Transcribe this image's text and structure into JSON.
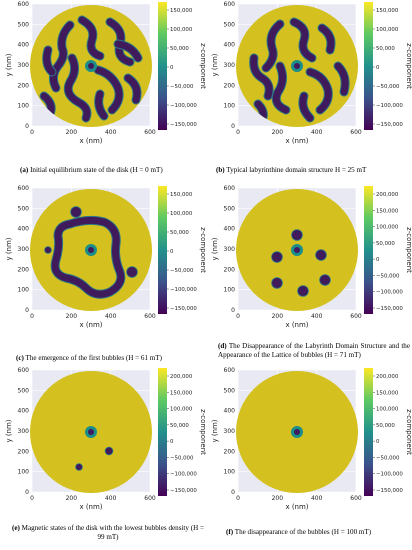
{
  "colors": {
    "background_panel": "#e8e9f2",
    "disk": "#d4c11f",
    "domain": "#3f1b5c",
    "wall": "#2d7a86",
    "core": "#1b8e8a",
    "colorbar": [
      "#440154",
      "#3b528b",
      "#21918c",
      "#5ec962",
      "#fde725"
    ]
  },
  "panels": [
    {
      "id": "a",
      "caption_letter": "(a)",
      "caption_text": "Initial equilibrium state of the disk (H = 0 mT)",
      "xlabel": "x (nm)",
      "ylabel": "y (nm)",
      "cbar_label": "z-component",
      "xticks": [
        "0",
        "200",
        "400",
        "600"
      ],
      "yticks": [
        "0",
        "100",
        "200",
        "300",
        "400",
        "500",
        "600"
      ],
      "cbar_ticks": [
        "150,000",
        "100,000",
        "50,000",
        "0",
        "−50,000",
        "−100,000",
        "−150,000"
      ],
      "state": "labyrinth-dense"
    },
    {
      "id": "b",
      "caption_letter": "(b)",
      "caption_text": "Typical labyrinthine domain structure  H = 25 mT",
      "xlabel": "x (nm)",
      "ylabel": "y (nm)",
      "cbar_label": "z-component",
      "xticks": [
        "0",
        "200",
        "400",
        "600"
      ],
      "yticks": [
        "0",
        "100",
        "200",
        "300",
        "400",
        "500",
        "600"
      ],
      "cbar_ticks": [
        "150,000",
        "100,000",
        "50,000",
        "0",
        "−50,000",
        "−100,000",
        "−150,000"
      ],
      "state": "labyrinth"
    },
    {
      "id": "c",
      "caption_letter": "(c)",
      "caption_text": "The emergence of the first bubbles (H = 61 mT)",
      "xlabel": "x (nm)",
      "ylabel": "y (nm)",
      "cbar_label": "z-component",
      "xticks": [
        "0",
        "200",
        "400",
        "600"
      ],
      "yticks": [
        "0",
        "100",
        "200",
        "300",
        "400",
        "500",
        "600"
      ],
      "cbar_ticks": [
        "150,000",
        "100,000",
        "50,000",
        "0",
        "−50,000",
        "−100,000",
        "−150,000"
      ],
      "state": "loop-bubbles"
    },
    {
      "id": "d",
      "caption_letter": "(d)",
      "caption_text": "The Disappearance of the Labyrinth Domain Structure and the Appearance of the Lattice of bubbles (H = 71 mT)",
      "xlabel": "x (nm)",
      "ylabel": "y (nm)",
      "cbar_label": "z-component",
      "xticks": [
        "0",
        "200",
        "400",
        "600"
      ],
      "yticks": [
        "0",
        "100",
        "200",
        "300",
        "400",
        "500",
        "600"
      ],
      "cbar_ticks": [
        "200,000",
        "150,000",
        "100,000",
        "50,000",
        "0",
        "−50,000",
        "−100,000",
        "−150,000"
      ],
      "state": "bubble-lattice"
    },
    {
      "id": "e",
      "caption_letter": "(e)",
      "caption_text": "Magnetic states of the disk with the lowest bubbles density (H = 99 mT)",
      "xlabel": "x (nm)",
      "ylabel": "y (nm)",
      "cbar_label": "z-component",
      "xticks": [
        "0",
        "200",
        "400",
        "600"
      ],
      "yticks": [
        "0",
        "100",
        "200",
        "300",
        "400",
        "500",
        "600"
      ],
      "cbar_ticks": [
        "200,000",
        "150,000",
        "100,000",
        "50,000",
        "0",
        "−50,000",
        "−100,000",
        "−150,000"
      ],
      "state": "few-bubbles"
    },
    {
      "id": "f",
      "caption_letter": "(f)",
      "caption_text": "The disappearance of the bubbles (H = 100 mT)",
      "xlabel": "x (nm)",
      "ylabel": "y (nm)",
      "cbar_label": "z-component",
      "xticks": [
        "0",
        "200",
        "400",
        "600"
      ],
      "yticks": [
        "0",
        "100",
        "200",
        "300",
        "400",
        "500",
        "600"
      ],
      "cbar_ticks": [
        "200,000",
        "150,000",
        "100,000",
        "50,000",
        "0",
        "−50,000",
        "−100,000",
        "−150,000"
      ],
      "state": "saturated"
    }
  ]
}
